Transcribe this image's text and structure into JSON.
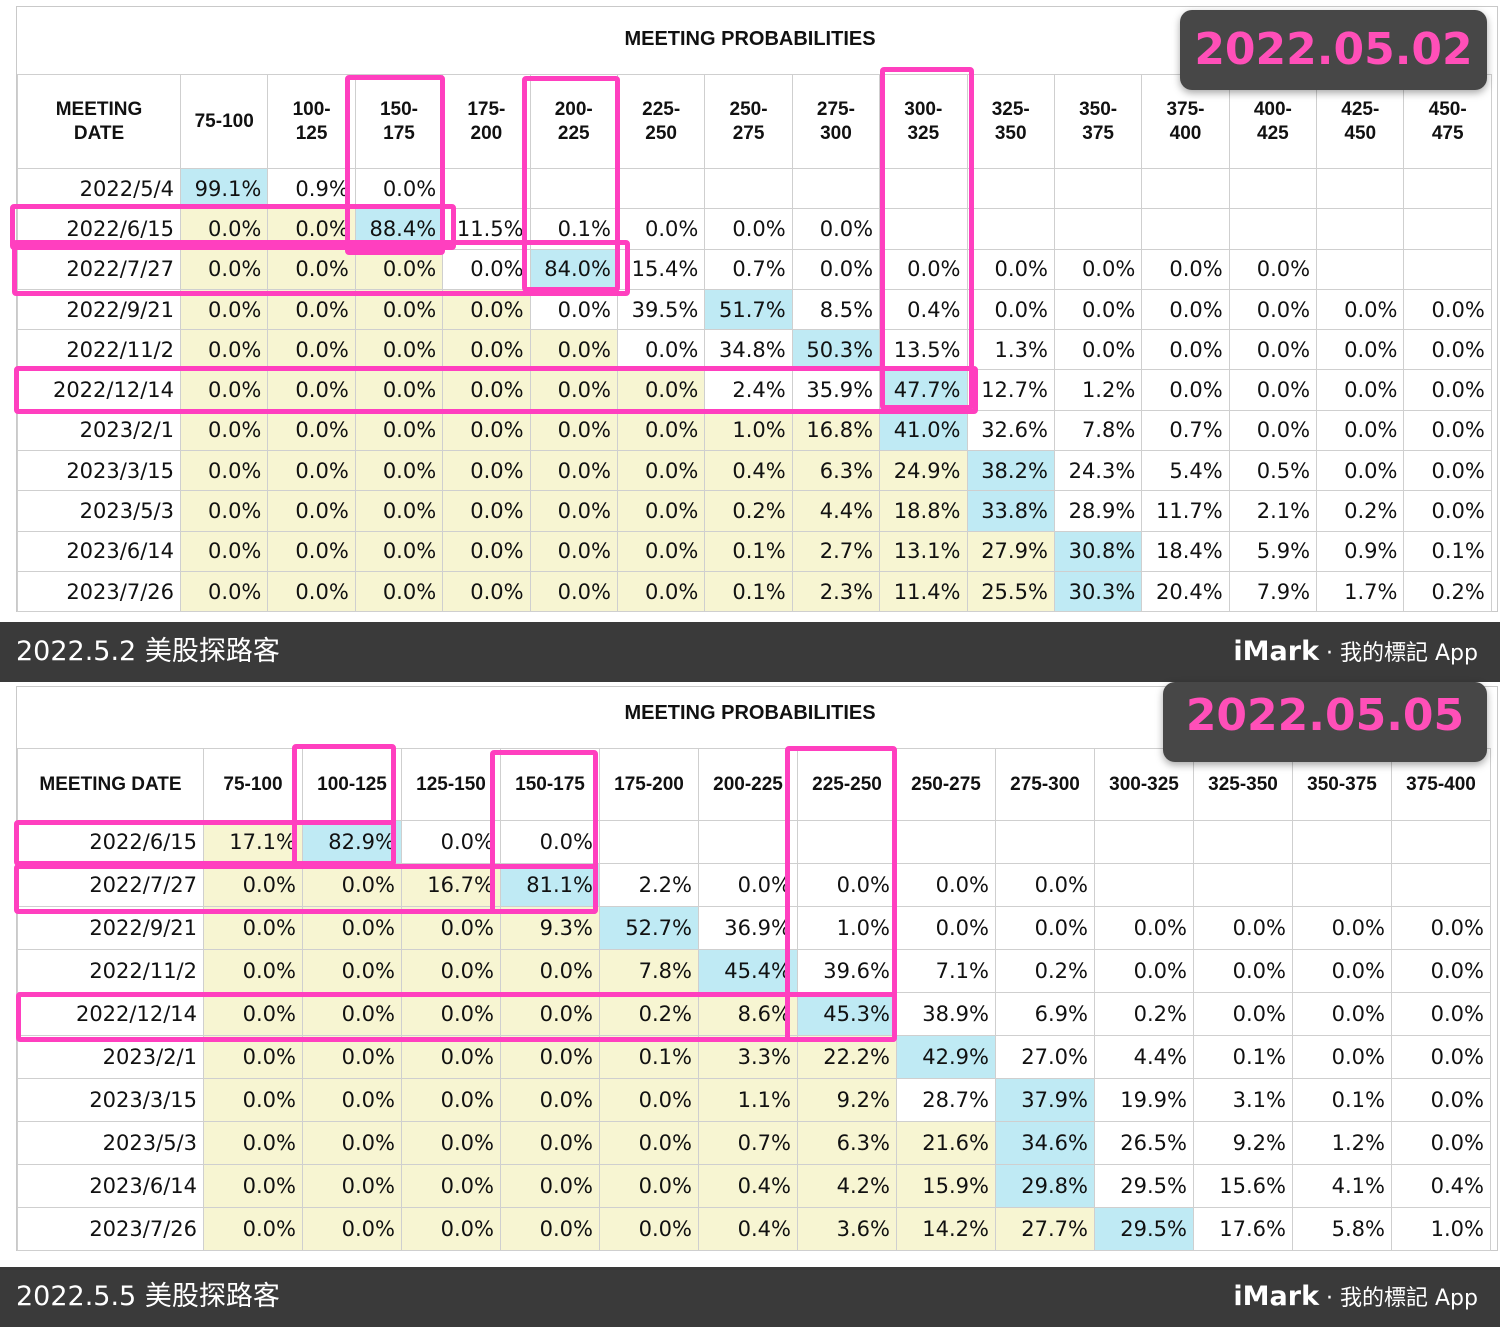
{
  "panel1": {
    "title": "MEETING PROBABILITIES",
    "badge": "2022.05.02",
    "corner_header": [
      "MEETING",
      "DATE"
    ],
    "columns": [
      [
        "75-100"
      ],
      [
        "100-",
        "125"
      ],
      [
        "150-",
        "175"
      ],
      [
        "175-",
        "200"
      ],
      [
        "200-",
        "225"
      ],
      [
        "225-",
        "250"
      ],
      [
        "250-",
        "275"
      ],
      [
        "275-",
        "300"
      ],
      [
        "300-",
        "325"
      ],
      [
        "325-",
        "350"
      ],
      [
        "350-",
        "375"
      ],
      [
        "375-",
        "400"
      ],
      [
        "400-",
        "425"
      ],
      [
        "425-",
        "450"
      ],
      [
        "450-",
        "475"
      ]
    ],
    "rows": [
      {
        "date": "2022/5/4",
        "cells": [
          "99.1%",
          "0.9%",
          "0.0%",
          "",
          "",
          "",
          "",
          "",
          "",
          "",
          "",
          "",
          "",
          "",
          ""
        ]
      },
      {
        "date": "2022/6/15",
        "cells": [
          "0.0%",
          "0.0%",
          "88.4%",
          "11.5%",
          "0.1%",
          "0.0%",
          "0.0%",
          "0.0%",
          "",
          "",
          "",
          "",
          "",
          "",
          ""
        ]
      },
      {
        "date": "2022/7/27",
        "cells": [
          "0.0%",
          "0.0%",
          "0.0%",
          "0.0%",
          "84.0%",
          "15.4%",
          "0.7%",
          "0.0%",
          "0.0%",
          "0.0%",
          "0.0%",
          "0.0%",
          "0.0%",
          "",
          ""
        ]
      },
      {
        "date": "2022/9/21",
        "cells": [
          "0.0%",
          "0.0%",
          "0.0%",
          "0.0%",
          "0.0%",
          "39.5%",
          "51.7%",
          "8.5%",
          "0.4%",
          "0.0%",
          "0.0%",
          "0.0%",
          "0.0%",
          "0.0%",
          "0.0%"
        ]
      },
      {
        "date": "2022/11/2",
        "cells": [
          "0.0%",
          "0.0%",
          "0.0%",
          "0.0%",
          "0.0%",
          "0.0%",
          "34.8%",
          "50.3%",
          "13.5%",
          "1.3%",
          "0.0%",
          "0.0%",
          "0.0%",
          "0.0%",
          "0.0%"
        ]
      },
      {
        "date": "2022/12/14",
        "cells": [
          "0.0%",
          "0.0%",
          "0.0%",
          "0.0%",
          "0.0%",
          "0.0%",
          "2.4%",
          "35.9%",
          "47.7%",
          "12.7%",
          "1.2%",
          "0.0%",
          "0.0%",
          "0.0%",
          "0.0%"
        ]
      },
      {
        "date": "2023/2/1",
        "cells": [
          "0.0%",
          "0.0%",
          "0.0%",
          "0.0%",
          "0.0%",
          "0.0%",
          "1.0%",
          "16.8%",
          "41.0%",
          "32.6%",
          "7.8%",
          "0.7%",
          "0.0%",
          "0.0%",
          "0.0%"
        ]
      },
      {
        "date": "2023/3/15",
        "cells": [
          "0.0%",
          "0.0%",
          "0.0%",
          "0.0%",
          "0.0%",
          "0.0%",
          "0.4%",
          "6.3%",
          "24.9%",
          "38.2%",
          "24.3%",
          "5.4%",
          "0.5%",
          "0.0%",
          "0.0%"
        ]
      },
      {
        "date": "2023/5/3",
        "cells": [
          "0.0%",
          "0.0%",
          "0.0%",
          "0.0%",
          "0.0%",
          "0.0%",
          "0.2%",
          "4.4%",
          "18.8%",
          "33.8%",
          "28.9%",
          "11.7%",
          "2.1%",
          "0.2%",
          "0.0%"
        ]
      },
      {
        "date": "2023/6/14",
        "cells": [
          "0.0%",
          "0.0%",
          "0.0%",
          "0.0%",
          "0.0%",
          "0.0%",
          "0.1%",
          "2.7%",
          "13.1%",
          "27.9%",
          "30.8%",
          "18.4%",
          "5.9%",
          "0.9%",
          "0.1%"
        ]
      },
      {
        "date": "2023/7/26",
        "cells": [
          "0.0%",
          "0.0%",
          "0.0%",
          "0.0%",
          "0.0%",
          "0.0%",
          "0.1%",
          "2.3%",
          "11.4%",
          "25.5%",
          "30.3%",
          "20.4%",
          "7.9%",
          "1.7%",
          "0.2%"
        ]
      }
    ],
    "yellow_through": [
      1,
      1,
      2,
      3,
      4,
      5,
      7,
      8,
      9,
      9,
      10
    ],
    "max_cols": [
      0,
      2,
      4,
      6,
      7,
      8,
      8,
      9,
      9,
      10,
      10
    ],
    "footer_left": "2022.5.2 美股探路客",
    "footer_brand": "iMark",
    "footer_right": "· 我的標記 App"
  },
  "panel2": {
    "title": "MEETING PROBABILITIES",
    "badge": "2022.05.05",
    "corner_header": [
      "MEETING DATE"
    ],
    "columns": [
      [
        "75-100"
      ],
      [
        "100-125"
      ],
      [
        "125-150"
      ],
      [
        "150-175"
      ],
      [
        "175-200"
      ],
      [
        "200-225"
      ],
      [
        "225-250"
      ],
      [
        "250-275"
      ],
      [
        "275-300"
      ],
      [
        "300-325"
      ],
      [
        "325-350"
      ],
      [
        "350-375"
      ],
      [
        "375-400"
      ]
    ],
    "rows": [
      {
        "date": "2022/6/15",
        "cells": [
          "17.1%",
          "82.9%",
          "0.0%",
          "0.0%",
          "",
          "",
          "",
          "",
          "",
          "",
          "",
          "",
          ""
        ]
      },
      {
        "date": "2022/7/27",
        "cells": [
          "0.0%",
          "0.0%",
          "16.7%",
          "81.1%",
          "2.2%",
          "0.0%",
          "0.0%",
          "0.0%",
          "0.0%",
          "",
          "",
          "",
          ""
        ]
      },
      {
        "date": "2022/9/21",
        "cells": [
          "0.0%",
          "0.0%",
          "0.0%",
          "9.3%",
          "52.7%",
          "36.9%",
          "1.0%",
          "0.0%",
          "0.0%",
          "0.0%",
          "0.0%",
          "0.0%",
          "0.0%"
        ]
      },
      {
        "date": "2022/11/2",
        "cells": [
          "0.0%",
          "0.0%",
          "0.0%",
          "0.0%",
          "7.8%",
          "45.4%",
          "39.6%",
          "7.1%",
          "0.2%",
          "0.0%",
          "0.0%",
          "0.0%",
          "0.0%"
        ]
      },
      {
        "date": "2022/12/14",
        "cells": [
          "0.0%",
          "0.0%",
          "0.0%",
          "0.0%",
          "0.2%",
          "8.6%",
          "45.3%",
          "38.9%",
          "6.9%",
          "0.2%",
          "0.0%",
          "0.0%",
          "0.0%"
        ]
      },
      {
        "date": "2023/2/1",
        "cells": [
          "0.0%",
          "0.0%",
          "0.0%",
          "0.0%",
          "0.1%",
          "3.3%",
          "22.2%",
          "42.9%",
          "27.0%",
          "4.4%",
          "0.1%",
          "0.0%",
          "0.0%"
        ]
      },
      {
        "date": "2023/3/15",
        "cells": [
          "0.0%",
          "0.0%",
          "0.0%",
          "0.0%",
          "0.0%",
          "1.1%",
          "9.2%",
          "28.7%",
          "37.9%",
          "19.9%",
          "3.1%",
          "0.1%",
          "0.0%"
        ]
      },
      {
        "date": "2023/5/3",
        "cells": [
          "0.0%",
          "0.0%",
          "0.0%",
          "0.0%",
          "0.0%",
          "0.7%",
          "6.3%",
          "21.6%",
          "34.6%",
          "26.5%",
          "9.2%",
          "1.2%",
          "0.0%"
        ]
      },
      {
        "date": "2023/6/14",
        "cells": [
          "0.0%",
          "0.0%",
          "0.0%",
          "0.0%",
          "0.0%",
          "0.4%",
          "4.2%",
          "15.9%",
          "29.8%",
          "29.5%",
          "15.6%",
          "4.1%",
          "0.4%"
        ]
      },
      {
        "date": "2023/7/26",
        "cells": [
          "0.0%",
          "0.0%",
          "0.0%",
          "0.0%",
          "0.0%",
          "0.4%",
          "3.6%",
          "14.2%",
          "27.7%",
          "29.5%",
          "17.6%",
          "5.8%",
          "1.0%"
        ]
      }
    ],
    "yellow_through": [
      0,
      3,
      3,
      4,
      5,
      6,
      6,
      7,
      7,
      8
    ],
    "max_cols": [
      1,
      3,
      4,
      5,
      6,
      7,
      8,
      8,
      8,
      9
    ],
    "footer_left": "2022.5.5 美股探路客",
    "footer_brand": "iMark",
    "footer_right": "· 我的標記 App"
  },
  "colors": {
    "yellow_cell": "#f7f5d2",
    "blue_cell": "#bfeaf4",
    "highlight": "#ff3fbf",
    "badge_bg": "#474747",
    "badge_text": "#ff4fb8",
    "footer_bg": "#3a3a3a"
  }
}
